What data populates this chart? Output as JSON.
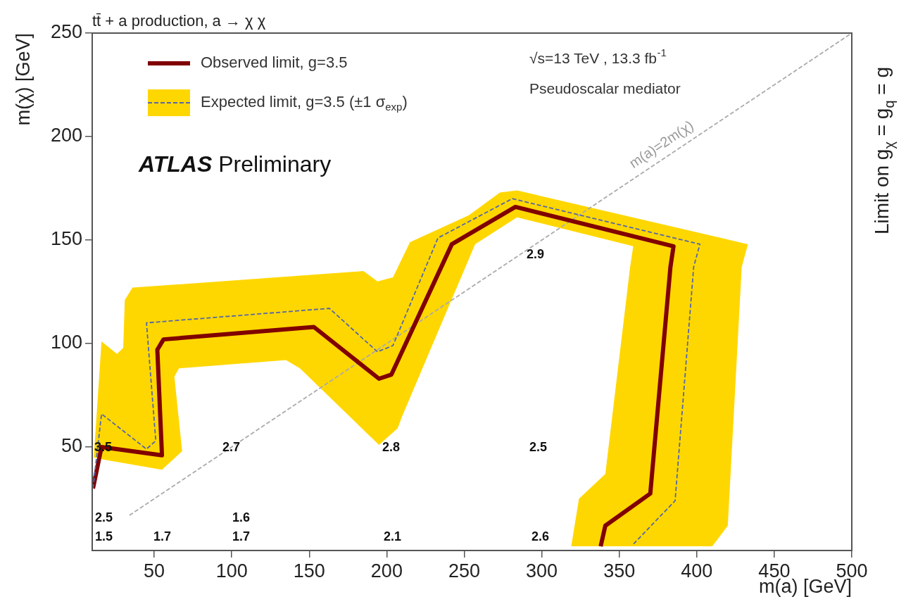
{
  "chart_data": {
    "type": "line",
    "title": "tt̄ + a production, a → χ χ",
    "xlabel": "m(a) [GeV]",
    "ylabel": "m(χ) [GeV]",
    "y2label": "Limit on g$_{χ}$ = g$_{q}$ = g",
    "xlim": [
      10,
      500
    ],
    "xticks": [
      50,
      100,
      150,
      200,
      250,
      300,
      350,
      400,
      450,
      500
    ],
    "ylim": [
      0,
      250
    ],
    "yticks": [
      50,
      100,
      150,
      200,
      250
    ],
    "legend": "top left",
    "series": [
      {
        "type": "area",
        "color": "#ffd700",
        "x": [
          11,
          16,
          26,
          30,
          31,
          36,
          185,
          194,
          204,
          215,
          253,
          273,
          284,
          433,
          429,
          420,
          410,
          319,
          324,
          341,
          357,
          359,
          284,
          257,
          210,
          207,
          195,
          144,
          135,
          66,
          63,
          68,
          55,
          17
        ],
        "values": [
          45,
          101,
          95,
          98,
          121,
          127,
          135,
          130,
          132,
          149,
          162,
          173,
          174,
          148,
          137,
          12,
          2,
          2,
          25,
          37,
          137,
          147,
          161,
          148,
          65,
          59,
          51,
          88,
          92,
          88,
          84,
          48,
          39,
          44
        ]
      },
      {
        "color": "#aaaaaa",
        "line_style": "dashed",
        "x": [
          34,
          500
        ],
        "values": [
          17,
          250
        ]
      },
      {
        "name": "Observed limit, g=3.5",
        "color": "#800000",
        "line_style": "solid",
        "x": [
          10.5,
          16,
          55,
          52,
          56,
          153,
          195,
          203,
          242,
          283,
          385,
          383,
          370,
          341,
          338
        ],
        "values": [
          30,
          50,
          46,
          97,
          102,
          108,
          83,
          85,
          148,
          166,
          147,
          137,
          27.5,
          12,
          2
        ]
      },
      {
        "name": "Expected limit, g=3.5 (±1 σ$_{exp}$)",
        "color": "#5566aa",
        "line_style": "dashed",
        "x": [
          10.5,
          16,
          45,
          51,
          45,
          163,
          194,
          204,
          233,
          281,
          402,
          398,
          386,
          359
        ],
        "values": [
          30,
          66,
          49,
          53,
          110,
          117,
          96,
          99,
          151,
          170,
          148,
          137,
          24,
          3
        ]
      }
    ],
    "annotations": [
      "ATLAS Preliminary",
      "√s=13 TeV , 13.3 fb$^{-1}$",
      "Pseudoscalar mediator",
      "m(a)=2m(χ)",
      "3.5",
      "2.7",
      "2.8",
      "2.5",
      "2.9",
      "2.5",
      "1.6",
      "1.5",
      "1.7",
      "1.7",
      "2.1",
      "2.6"
    ]
  }
}
